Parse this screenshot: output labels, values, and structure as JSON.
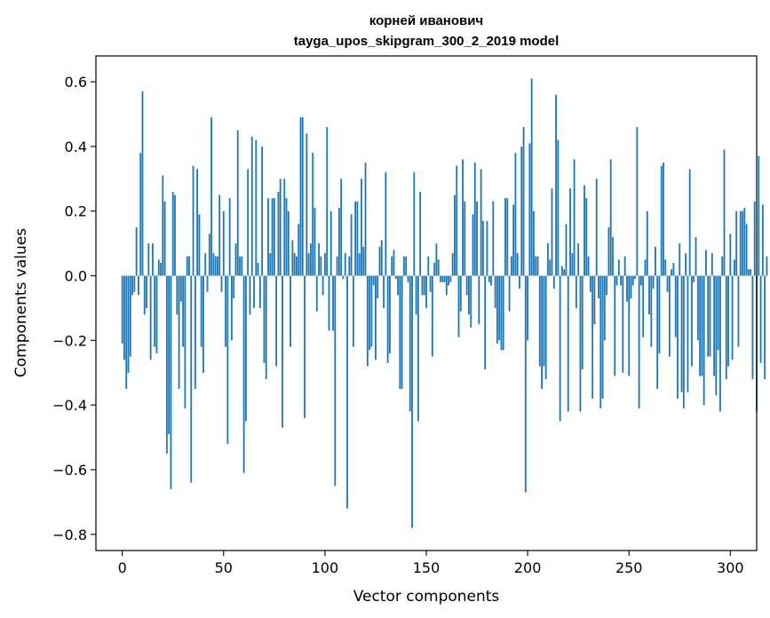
{
  "chart_data": {
    "type": "bar",
    "title": "корней иванович",
    "subtitle": "tayga_upos_skipgram_300_2_2019 model",
    "xlabel": "Vector components",
    "ylabel": "Components values",
    "xlim": [
      -13,
      313
    ],
    "ylim": [
      -0.85,
      0.68
    ],
    "xticks": [
      0,
      50,
      100,
      150,
      200,
      250,
      300
    ],
    "xtick_labels": [
      "0",
      "50",
      "100",
      "150",
      "200",
      "250",
      "300"
    ],
    "yticks": [
      0.6,
      0.4,
      0.2,
      0.0,
      -0.2,
      -0.4,
      -0.6,
      -0.8
    ],
    "ytick_labels": [
      "0.6",
      "0.4",
      "0.2",
      "0.0",
      "−0.2",
      "−0.4",
      "−0.6",
      "−0.8"
    ],
    "grid": false,
    "bar_color": "#1f77b4",
    "series": [
      {
        "values": [
          -0.21,
          -0.26,
          -0.35,
          -0.3,
          -0.25,
          -0.06,
          -0.05,
          0.15,
          -0.06,
          0.38,
          0.57,
          -0.12,
          -0.1,
          0.1,
          -0.26,
          0.1,
          -0.22,
          -0.24,
          0.05,
          0.04,
          0.31,
          0.23,
          -0.55,
          -0.49,
          -0.66,
          0.26,
          0.25,
          -0.12,
          -0.35,
          -0.08,
          -0.22,
          -0.41,
          0.06,
          0.06,
          -0.64,
          0.34,
          -0.35,
          0.33,
          0.19,
          -0.22,
          -0.3,
          0.07,
          -0.05,
          0.13,
          0.49,
          0.07,
          0.06,
          0.06,
          0.25,
          -0.05,
          0.2,
          -0.22,
          -0.52,
          0.24,
          -0.2,
          -0.07,
          0.1,
          0.45,
          0.06,
          0.06,
          -0.61,
          -0.45,
          0.33,
          -0.12,
          0.43,
          -0.1,
          0.42,
          0.04,
          -0.1,
          0.4,
          -0.27,
          -0.32,
          0.24,
          0.07,
          0.24,
          0.24,
          -0.28,
          0.26,
          0.3,
          -0.47,
          0.3,
          0.24,
          0.2,
          -0.22,
          0.11,
          0.07,
          0.06,
          0.16,
          0.49,
          0.49,
          -0.44,
          0.44,
          0.07,
          0.1,
          0.38,
          0.21,
          -0.11,
          0.1,
          0.06,
          -0.06,
          0.07,
          0.46,
          -0.17,
          0.2,
          -0.17,
          -0.65,
          0.06,
          0.21,
          0.3,
          -0.01,
          0.07,
          -0.72,
          0.06,
          0.19,
          -0.22,
          0.23,
          0.23,
          0.07,
          0.3,
          0.09,
          0.35,
          -0.28,
          -0.23,
          -0.22,
          -0.03,
          -0.26,
          -0.07,
          0.09,
          0.11,
          -0.1,
          0.32,
          -0.27,
          -0.24,
          0.06,
          0.08,
          -0.01,
          -0.06,
          -0.35,
          -0.35,
          0.06,
          0.06,
          -0.02,
          -0.42,
          -0.78,
          0.32,
          -0.12,
          -0.45,
          0.26,
          -0.06,
          -0.06,
          -0.1,
          0.06,
          -0.05,
          -0.25,
          0.04,
          0.1,
          0.05,
          -0.02,
          -0.02,
          -0.02,
          -0.06,
          -0.03,
          -0.02,
          0.07,
          0.25,
          0.34,
          -0.19,
          -0.11,
          0.36,
          0.23,
          -0.06,
          -0.12,
          -0.16,
          0.19,
          0.35,
          0.23,
          -0.15,
          0.33,
          0.17,
          -0.29,
          0.17,
          -0.02,
          -0.03,
          0.23,
          -0.1,
          -0.21,
          -0.2,
          -0.23,
          -0.23,
          0.24,
          0.24,
          -0.11,
          0.06,
          0.22,
          0.38,
          0.07,
          -0.04,
          0.4,
          0.46,
          -0.67,
          -0.2,
          0.41,
          0.61,
          0.2,
          0.06,
          0.06,
          -0.28,
          -0.35,
          -0.28,
          -0.32,
          0.1,
          0.05,
          0.27,
          -0.04,
          0.56,
          0.42,
          -0.45,
          0.03,
          0.02,
          0.16,
          -0.42,
          0.27,
          0.07,
          0.36,
          -0.1,
          0.1,
          -0.42,
          -0.29,
          0.28,
          0.24,
          0.06,
          -0.05,
          -0.38,
          -0.15,
          0.3,
          -0.07,
          -0.41,
          -0.38,
          -0.2,
          -0.06,
          0.15,
          0.36,
          0.12,
          -0.31,
          -0.03,
          0.05,
          -0.03,
          -0.3,
          0.06,
          -0.08,
          -0.31,
          -0.07,
          -0.03,
          -0.01,
          0.46,
          -0.41,
          -0.03,
          -0.19,
          0.05,
          0.2,
          -0.12,
          -0.22,
          -0.04,
          0.09,
          -0.35,
          -0.24,
          0.34,
          0.35,
          0.05,
          -0.05,
          -0.25,
          0.02,
          0.04,
          -0.19,
          -0.38,
          0.1,
          -0.36,
          -0.41,
          0.07,
          -0.36,
          0.33,
          -0.28,
          -0.02,
          0.12,
          -0.2,
          -0.31,
          -0.31,
          -0.4,
          0.08,
          -0.25,
          -0.25,
          0.07,
          -0.31,
          -0.37,
          -0.23,
          -0.42,
          0.06,
          0.39,
          -0.32,
          -0.28,
          0.13,
          -0.26,
          0.05,
          0.2,
          -0.22,
          0.2,
          0.2,
          0.21,
          0.16,
          0.02,
          0.02,
          -0.32,
          0.23,
          -0.42,
          0.37,
          -0.27,
          0.22,
          -0.32,
          0.06
        ]
      }
    ]
  }
}
